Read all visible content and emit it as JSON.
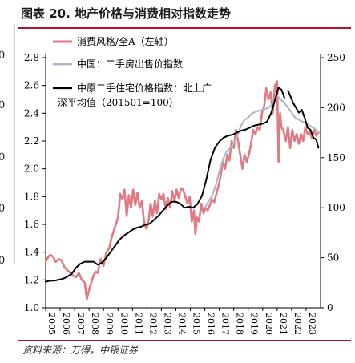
{
  "title": "图表 20. 地产价格与消费相对指数走势",
  "source": "资料来源：万得，中银证券",
  "left_fragment_labels": [
    "0",
    "0",
    "0",
    "0",
    "0"
  ],
  "chart_data": {
    "type": "line",
    "x_ticks": [
      "2005",
      "2006",
      "2007",
      "2008",
      "2009",
      "2010",
      "2011",
      "2012",
      "2013",
      "2014",
      "2015",
      "2016",
      "2017",
      "2018",
      "2019",
      "2020",
      "2021",
      "2022",
      "2023"
    ],
    "xlim": [
      2005,
      2024
    ],
    "left_axis": {
      "ylim": [
        1.0,
        2.8
      ],
      "ticks": [
        "1.0",
        "1.2",
        "1.4",
        "1.6",
        "1.8",
        "2.0",
        "2.2",
        "2.4",
        "2.6",
        "2.8"
      ]
    },
    "right_axis": {
      "ylim": [
        0,
        250
      ],
      "ticks": [
        "0",
        "50",
        "100",
        "150",
        "200",
        "250"
      ]
    },
    "legend_location": "top-left",
    "series": [
      {
        "name": "消费风格/全A（左轴）",
        "axis": "left",
        "color": "#e07b84",
        "x": [
          2005.0,
          2005.15,
          2005.3,
          2005.5,
          2005.7,
          2005.9,
          2006.1,
          2006.3,
          2006.5,
          2006.7,
          2006.9,
          2007.1,
          2007.3,
          2007.5,
          2007.7,
          2007.85,
          2008.0,
          2008.15,
          2008.3,
          2008.45,
          2008.6,
          2008.8,
          2009.0,
          2009.2,
          2009.4,
          2009.55,
          2009.7,
          2009.85,
          2010.0,
          2010.15,
          2010.3,
          2010.45,
          2010.6,
          2010.75,
          2010.9,
          2011.05,
          2011.2,
          2011.35,
          2011.5,
          2011.65,
          2011.8,
          2011.95,
          2012.1,
          2012.25,
          2012.4,
          2012.55,
          2012.7,
          2012.85,
          2013.0,
          2013.15,
          2013.3,
          2013.45,
          2013.6,
          2013.75,
          2013.9,
          2014.05,
          2014.2,
          2014.35,
          2014.5,
          2014.65,
          2014.8,
          2014.95,
          2015.1,
          2015.25,
          2015.35,
          2015.45,
          2015.6,
          2015.75,
          2015.9,
          2016.05,
          2016.2,
          2016.35,
          2016.5,
          2016.65,
          2016.8,
          2016.95,
          2017.1,
          2017.25,
          2017.4,
          2017.55,
          2017.7,
          2017.85,
          2018.0,
          2018.15,
          2018.3,
          2018.45,
          2018.6,
          2018.75,
          2018.9,
          2019.05,
          2019.2,
          2019.35,
          2019.5,
          2019.65,
          2019.8,
          2019.95,
          2020.1,
          2020.25,
          2020.4,
          2020.55,
          2020.7,
          2020.85,
          2021.0,
          2021.1,
          2021.2,
          2021.3,
          2021.45,
          2021.6,
          2021.75,
          2021.9,
          2022.05,
          2022.2,
          2022.35,
          2022.5,
          2022.65,
          2022.8,
          2022.95,
          2023.1,
          2023.25,
          2023.4,
          2023.55,
          2023.7,
          2023.85
        ],
        "values": [
          1.33,
          1.36,
          1.38,
          1.37,
          1.33,
          1.35,
          1.34,
          1.29,
          1.27,
          1.25,
          1.23,
          1.22,
          1.25,
          1.2,
          1.18,
          1.06,
          1.13,
          1.18,
          1.23,
          1.26,
          1.25,
          1.35,
          1.3,
          1.4,
          1.43,
          1.5,
          1.55,
          1.6,
          1.65,
          1.82,
          1.78,
          1.85,
          1.66,
          1.81,
          1.72,
          1.85,
          1.74,
          1.83,
          1.72,
          1.77,
          1.62,
          1.57,
          1.61,
          1.75,
          1.66,
          1.77,
          1.68,
          1.82,
          1.78,
          1.82,
          1.71,
          1.79,
          1.72,
          1.84,
          1.77,
          1.85,
          1.79,
          1.86,
          1.85,
          1.8,
          1.75,
          1.8,
          1.62,
          1.7,
          1.53,
          1.65,
          1.62,
          1.75,
          1.68,
          1.72,
          1.7,
          1.74,
          1.78,
          1.76,
          1.82,
          1.88,
          1.95,
          2.05,
          2.0,
          2.1,
          2.06,
          2.2,
          2.15,
          2.28,
          2.2,
          2.1,
          2.0,
          2.1,
          2.05,
          2.1,
          2.18,
          2.28,
          2.25,
          2.3,
          2.28,
          2.4,
          2.45,
          2.58,
          2.5,
          2.55,
          2.4,
          2.6,
          2.63,
          2.05,
          2.4,
          2.3,
          2.27,
          2.2,
          2.3,
          2.15,
          2.28,
          2.2,
          2.25,
          2.18,
          2.25,
          2.2,
          2.3,
          2.25,
          2.27,
          2.22,
          2.28,
          2.24,
          2.26
        ]
      },
      {
        "name": "中国：二手房出售价指数",
        "axis": "right",
        "color": "#b4b7cc",
        "x": [
          2016.0,
          2016.25,
          2016.5,
          2016.75,
          2017.0,
          2017.25,
          2017.5,
          2017.75,
          2018.0,
          2018.25,
          2018.5,
          2018.75,
          2019.0,
          2019.25,
          2019.5,
          2019.75,
          2020.0,
          2020.25,
          2020.5,
          2020.75,
          2021.0,
          2021.25,
          2021.5,
          2021.75,
          2022.0,
          2022.25,
          2022.5,
          2022.75,
          2023.0,
          2023.25,
          2023.5,
          2023.75,
          2023.9
        ],
        "values": [
          100,
          106,
          112,
          122,
          136,
          148,
          156,
          160,
          164,
          172,
          182,
          188,
          190,
          194,
          196,
          197,
          198,
          199,
          201,
          205,
          212,
          208,
          205,
          200,
          195,
          190,
          188,
          186,
          185,
          182,
          180,
          177,
          175
        ]
      },
      {
        "name": "中原二手住宅价格指数：北上广深平均值（201501=100）",
        "axis": "right",
        "color": "#000000",
        "x": [
          2005.0,
          2005.3,
          2005.6,
          2005.9,
          2006.2,
          2006.5,
          2006.8,
          2007.1,
          2007.4,
          2007.7,
          2008.0,
          2008.3,
          2008.6,
          2008.9,
          2009.2,
          2009.5,
          2009.8,
          2010.1,
          2010.4,
          2010.7,
          2011.0,
          2011.3,
          2011.6,
          2011.9,
          2012.2,
          2012.5,
          2012.8,
          2013.1,
          2013.4,
          2013.7,
          2014.0,
          2014.3,
          2014.6,
          2014.9,
          2015.2,
          2015.5,
          2015.8,
          2016.1,
          2016.4,
          2016.7,
          2017.0,
          2017.3,
          2017.6,
          2017.9,
          2018.2,
          2018.5,
          2018.8,
          2019.1,
          2019.4,
          2019.7,
          2020.0,
          2020.3,
          2020.6,
          2020.9,
          2021.1,
          2021.3,
          2021.5,
          null,
          2021.75,
          2021.9,
          2022.1,
          2022.3,
          2022.5,
          2022.7,
          2022.9,
          2023.1,
          2023.3,
          2023.5,
          2023.7,
          2023.85
        ],
        "values": [
          26,
          27,
          27,
          28,
          29,
          31,
          34,
          40,
          44,
          46,
          46,
          46,
          43,
          45,
          50,
          56,
          62,
          68,
          72,
          75,
          78,
          80,
          81,
          83,
          84,
          88,
          92,
          97,
          102,
          106,
          106,
          104,
          100,
          101,
          100,
          104,
          112,
          128,
          148,
          160,
          166,
          170,
          172,
          173,
          175,
          177,
          178,
          180,
          182,
          183,
          184,
          186,
          195,
          210,
          220,
          218,
          210,
          null,
          217,
          212,
          205,
          200,
          195,
          198,
          190,
          180,
          178,
          170,
          168,
          160
        ]
      }
    ]
  }
}
